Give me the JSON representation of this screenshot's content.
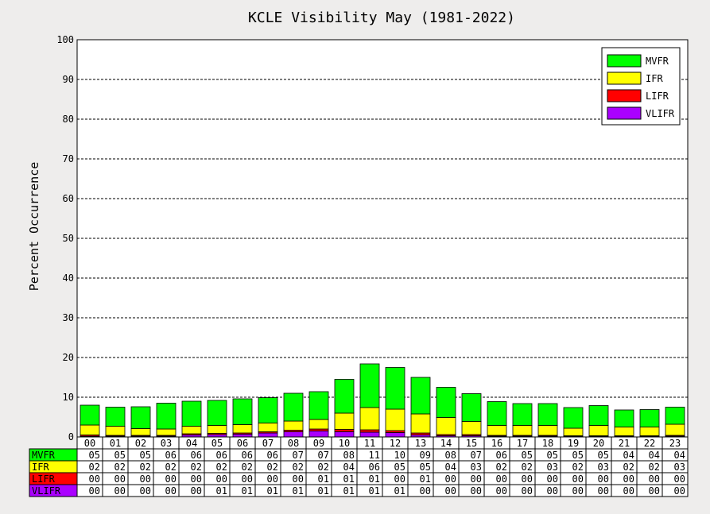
{
  "chart_data": {
    "type": "bar",
    "stacked": true,
    "title": "KCLE Visibility May (1981-2022)",
    "ylabel": "Percent Occurrence",
    "xlabel": "",
    "ylim": [
      0,
      100
    ],
    "yticks": [
      0,
      10,
      20,
      30,
      40,
      50,
      60,
      70,
      80,
      90,
      100
    ],
    "grid": "horizontal dashed",
    "legend_position": "top-right",
    "categories": [
      "00",
      "01",
      "02",
      "03",
      "04",
      "05",
      "06",
      "07",
      "08",
      "09",
      "10",
      "11",
      "12",
      "13",
      "14",
      "15",
      "16",
      "17",
      "18",
      "19",
      "20",
      "21",
      "22",
      "23"
    ],
    "series": [
      {
        "name": "VLIFR",
        "color": "#aa00ff",
        "values": [
          0.2,
          0.2,
          0.2,
          0.2,
          0.5,
          0.6,
          0.7,
          1.0,
          1.3,
          1.5,
          1.3,
          1.2,
          1.1,
          0.5,
          0.3,
          0.3,
          0.2,
          0.2,
          0.2,
          0.2,
          0.2,
          0.2,
          0.2,
          0.2
        ]
      },
      {
        "name": "LIFR",
        "color": "#ff0000",
        "values": [
          0.3,
          0.2,
          0.2,
          0.2,
          0.3,
          0.3,
          0.3,
          0.3,
          0.4,
          0.5,
          0.6,
          0.6,
          0.5,
          0.5,
          0.3,
          0.3,
          0.2,
          0.2,
          0.2,
          0.1,
          0.1,
          0.1,
          0.1,
          0.2
        ]
      },
      {
        "name": "IFR",
        "color": "#ffff00",
        "values": [
          2.5,
          2.3,
          1.7,
          1.6,
          1.9,
          2.0,
          2.1,
          2.2,
          2.3,
          2.4,
          4.1,
          5.6,
          5.4,
          4.8,
          4.3,
          3.3,
          2.5,
          2.5,
          2.5,
          1.9,
          2.6,
          2.2,
          2.2,
          2.8
        ]
      },
      {
        "name": "MVFR",
        "color": "#00ff00",
        "values": [
          5.0,
          4.8,
          5.5,
          6.5,
          6.3,
          6.3,
          6.5,
          6.4,
          7.0,
          7.0,
          8.5,
          11.0,
          10.5,
          9.2,
          7.6,
          7.0,
          6.0,
          5.5,
          5.5,
          5.2,
          5.0,
          4.3,
          4.4,
          4.3
        ]
      }
    ],
    "table": {
      "rows": [
        {
          "label": "MVFR",
          "color": "#00ff00",
          "cells": [
            "05",
            "05",
            "05",
            "06",
            "06",
            "06",
            "06",
            "06",
            "07",
            "07",
            "08",
            "11",
            "10",
            "09",
            "08",
            "07",
            "06",
            "05",
            "05",
            "05",
            "05",
            "04",
            "04",
            "04"
          ]
        },
        {
          "label": "IFR",
          "color": "#ffff00",
          "cells": [
            "02",
            "02",
            "02",
            "02",
            "02",
            "02",
            "02",
            "02",
            "02",
            "02",
            "04",
            "06",
            "05",
            "05",
            "04",
            "03",
            "02",
            "02",
            "03",
            "02",
            "03",
            "02",
            "02",
            "03"
          ]
        },
        {
          "label": "LIFR",
          "color": "#ff0000",
          "cells": [
            "00",
            "00",
            "00",
            "00",
            "00",
            "00",
            "00",
            "00",
            "00",
            "01",
            "01",
            "01",
            "00",
            "01",
            "00",
            "00",
            "00",
            "00",
            "00",
            "00",
            "00",
            "00",
            "00",
            "00"
          ]
        },
        {
          "label": "VLIFR",
          "color": "#aa00ff",
          "cells": [
            "00",
            "00",
            "00",
            "00",
            "00",
            "01",
            "01",
            "01",
            "01",
            "01",
            "01",
            "01",
            "01",
            "00",
            "00",
            "00",
            "00",
            "00",
            "00",
            "00",
            "00",
            "00",
            "00",
            "00"
          ]
        }
      ]
    },
    "legend": [
      {
        "label": "MVFR",
        "color": "#00ff00"
      },
      {
        "label": "IFR",
        "color": "#ffff00"
      },
      {
        "label": "LIFR",
        "color": "#ff0000"
      },
      {
        "label": "VLIFR",
        "color": "#aa00ff"
      }
    ]
  }
}
